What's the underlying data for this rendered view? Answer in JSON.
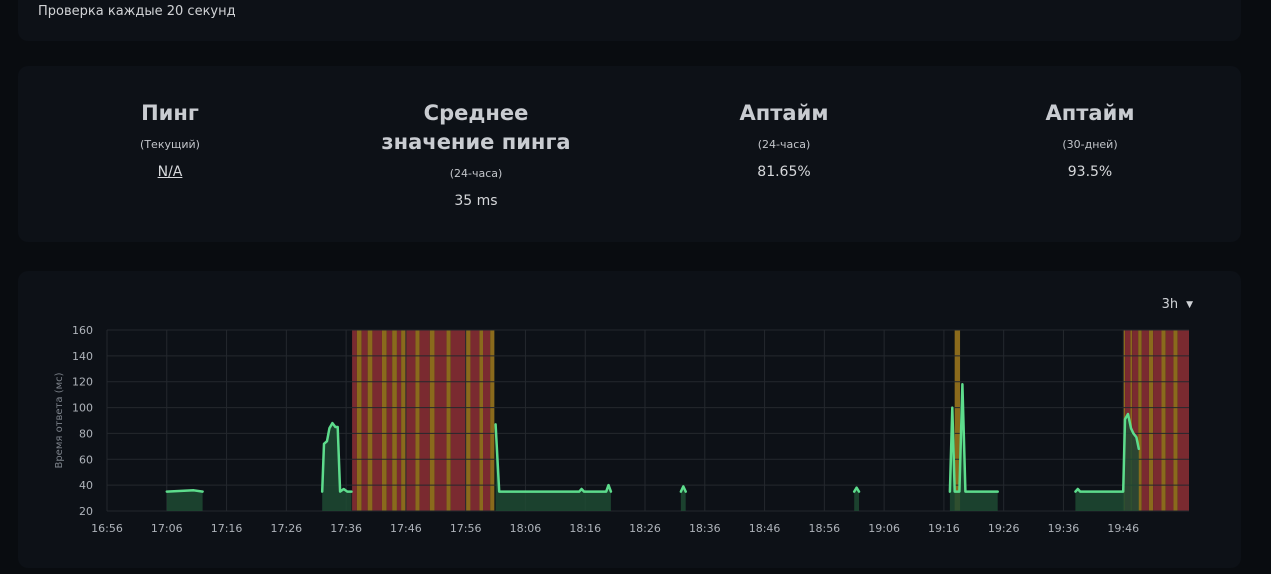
{
  "header": {
    "interval_text": "Проверка каждые 20 секунд"
  },
  "stats": [
    {
      "title": "Пинг",
      "period": "(Текущий)",
      "value": "N/A"
    },
    {
      "title": "Среднее значение пинга",
      "period": "(24-часа)",
      "value": "35 ms"
    },
    {
      "title": "Аптайм",
      "period": "(24-часа)",
      "value": "81.65%"
    },
    {
      "title": "Аптайм",
      "period": "(30-дней)",
      "value": "93.5%"
    }
  ],
  "chart_controls": {
    "range_label": "3h"
  },
  "colors": {
    "line": "#5ddc8c",
    "area": "#1e4a33",
    "down": "#7a2a30",
    "pending": "#8a6a1c",
    "grid": "#24282e",
    "text": "#aeb3ba"
  },
  "chart_data": {
    "type": "line",
    "ylabel": "Время ответа (мс)",
    "xlabel": "",
    "ylim": [
      20,
      160
    ],
    "y_ticks": [
      20,
      40,
      60,
      80,
      100,
      120,
      140,
      160
    ],
    "x_tick_labels": [
      "16:56",
      "17:06",
      "17:16",
      "17:26",
      "17:36",
      "17:46",
      "17:56",
      "18:06",
      "18:16",
      "18:26",
      "18:36",
      "18:46",
      "18:56",
      "19:06",
      "19:16",
      "19:26",
      "19:36",
      "19:46"
    ],
    "x_range_minutes": [
      0,
      181
    ],
    "series": [
      {
        "points": [
          [
            0,
            35
          ],
          [
            10,
            35
          ],
          [
            14.5,
            36
          ],
          [
            16,
            35
          ],
          [
            36,
            35
          ],
          [
            36.3,
            72
          ],
          [
            36.8,
            74
          ],
          [
            37.2,
            84
          ],
          [
            37.7,
            88
          ],
          [
            38.2,
            85
          ],
          [
            38.6,
            85
          ],
          [
            39,
            35
          ],
          [
            39.6,
            37
          ],
          [
            40.2,
            35
          ],
          [
            40.9,
            35
          ],
          [
            65,
            87
          ],
          [
            65.6,
            35
          ],
          [
            73,
            35
          ],
          [
            79,
            35
          ],
          [
            79.4,
            37
          ],
          [
            79.8,
            35
          ],
          [
            83.5,
            35
          ],
          [
            83.9,
            40
          ],
          [
            84.3,
            35
          ],
          [
            96,
            35
          ],
          [
            96.4,
            39
          ],
          [
            96.8,
            35
          ],
          [
            125,
            35
          ],
          [
            125.4,
            38
          ],
          [
            125.8,
            35
          ],
          [
            141,
            35
          ],
          [
            141.4,
            100
          ],
          [
            141.8,
            35
          ],
          [
            142.6,
            35
          ],
          [
            143.1,
            118
          ],
          [
            143.6,
            35
          ],
          [
            149,
            35
          ],
          [
            162,
            35
          ],
          [
            162.4,
            37
          ],
          [
            162.8,
            35
          ],
          [
            170,
            35
          ],
          [
            170.3,
            91
          ],
          [
            170.8,
            95
          ],
          [
            171.3,
            84
          ],
          [
            171.7,
            80
          ],
          [
            172.2,
            77
          ],
          [
            172.6,
            68
          ]
        ]
      }
    ],
    "status_bands": [
      {
        "start": 41.0,
        "end": 41.8,
        "status": "down"
      },
      {
        "start": 41.8,
        "end": 42.6,
        "status": "pending"
      },
      {
        "start": 42.6,
        "end": 43.6,
        "status": "down"
      },
      {
        "start": 43.6,
        "end": 44.4,
        "status": "pending"
      },
      {
        "start": 44.4,
        "end": 46.0,
        "status": "down"
      },
      {
        "start": 46.0,
        "end": 46.8,
        "status": "pending"
      },
      {
        "start": 46.8,
        "end": 47.7,
        "status": "down"
      },
      {
        "start": 47.7,
        "end": 48.5,
        "status": "pending"
      },
      {
        "start": 48.5,
        "end": 49.2,
        "status": "down"
      },
      {
        "start": 49.2,
        "end": 50.0,
        "status": "pending"
      },
      {
        "start": 50.0,
        "end": 51.6,
        "status": "down"
      },
      {
        "start": 51.6,
        "end": 52.3,
        "status": "pending"
      },
      {
        "start": 52.3,
        "end": 54.0,
        "status": "down"
      },
      {
        "start": 54.0,
        "end": 54.8,
        "status": "pending"
      },
      {
        "start": 54.8,
        "end": 56.8,
        "status": "down"
      },
      {
        "start": 56.8,
        "end": 57.5,
        "status": "pending"
      },
      {
        "start": 57.5,
        "end": 60.0,
        "status": "down"
      },
      {
        "start": 60.0,
        "end": 60.8,
        "status": "pending"
      },
      {
        "start": 60.8,
        "end": 62.3,
        "status": "down"
      },
      {
        "start": 62.3,
        "end": 62.9,
        "status": "pending"
      },
      {
        "start": 62.9,
        "end": 64.1,
        "status": "down"
      },
      {
        "start": 64.1,
        "end": 64.8,
        "status": "pending"
      },
      {
        "start": 141.8,
        "end": 142.7,
        "status": "pending"
      },
      {
        "start": 170.0,
        "end": 170.3,
        "status": "pending"
      },
      {
        "start": 170.3,
        "end": 171.2,
        "status": "down"
      },
      {
        "start": 171.2,
        "end": 171.5,
        "status": "pending"
      },
      {
        "start": 171.5,
        "end": 172.5,
        "status": "down"
      },
      {
        "start": 172.5,
        "end": 173.1,
        "status": "pending"
      },
      {
        "start": 173.1,
        "end": 174.3,
        "status": "down"
      },
      {
        "start": 174.3,
        "end": 175.0,
        "status": "pending"
      },
      {
        "start": 175.0,
        "end": 176.4,
        "status": "down"
      },
      {
        "start": 176.4,
        "end": 177.1,
        "status": "pending"
      },
      {
        "start": 177.1,
        "end": 178.4,
        "status": "down"
      },
      {
        "start": 178.4,
        "end": 179.1,
        "status": "pending"
      },
      {
        "start": 179.1,
        "end": 181.0,
        "status": "down"
      }
    ]
  }
}
